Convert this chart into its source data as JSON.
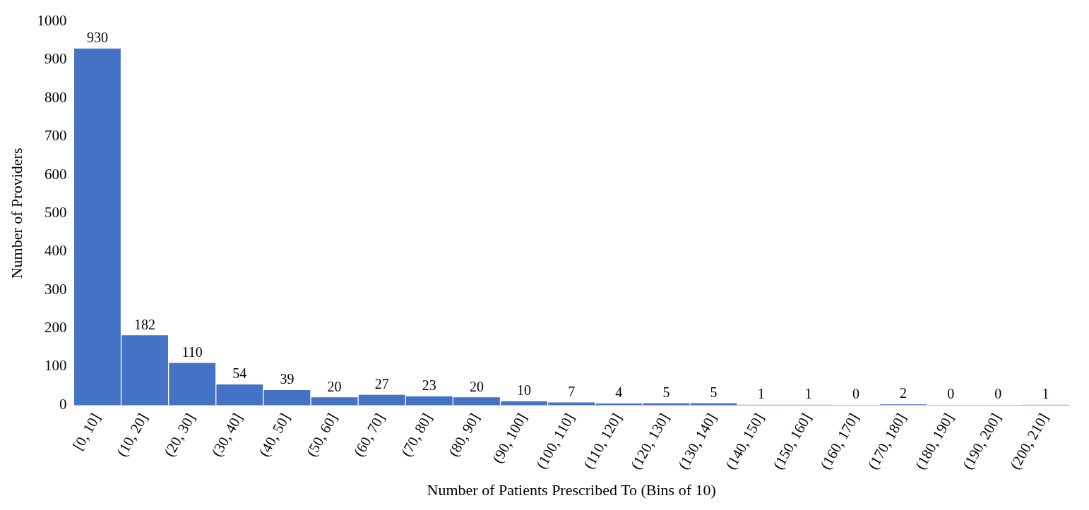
{
  "chart_data": {
    "type": "bar",
    "xlabel": "Number of Patients Prescribed To (Bins of 10)",
    "ylabel": "Number of Providers",
    "categories": [
      "[0, 10]",
      "(10, 20]",
      "(20, 30]",
      "(30, 40]",
      "(40, 50]",
      "(50, 60]",
      "(60, 70]",
      "(70, 80]",
      "(80, 90]",
      "(90, 100]",
      "(100, 110]",
      "(110, 120]",
      "(120, 130]",
      "(130, 140]",
      "(140, 150]",
      "(150, 160]",
      "(160, 170]",
      "(170, 180]",
      "(180, 190]",
      "(190, 200]",
      "(200, 210]"
    ],
    "values": [
      930,
      182,
      110,
      54,
      39,
      20,
      27,
      23,
      20,
      10,
      7,
      4,
      5,
      5,
      1,
      1,
      0,
      2,
      0,
      0,
      1
    ],
    "color": "#4472c4",
    "ylim": [
      0,
      1000
    ],
    "yticks": [
      0,
      100,
      200,
      300,
      400,
      500,
      600,
      700,
      800,
      900,
      1000
    ],
    "grid": false,
    "legend": false,
    "data_labels": true
  }
}
